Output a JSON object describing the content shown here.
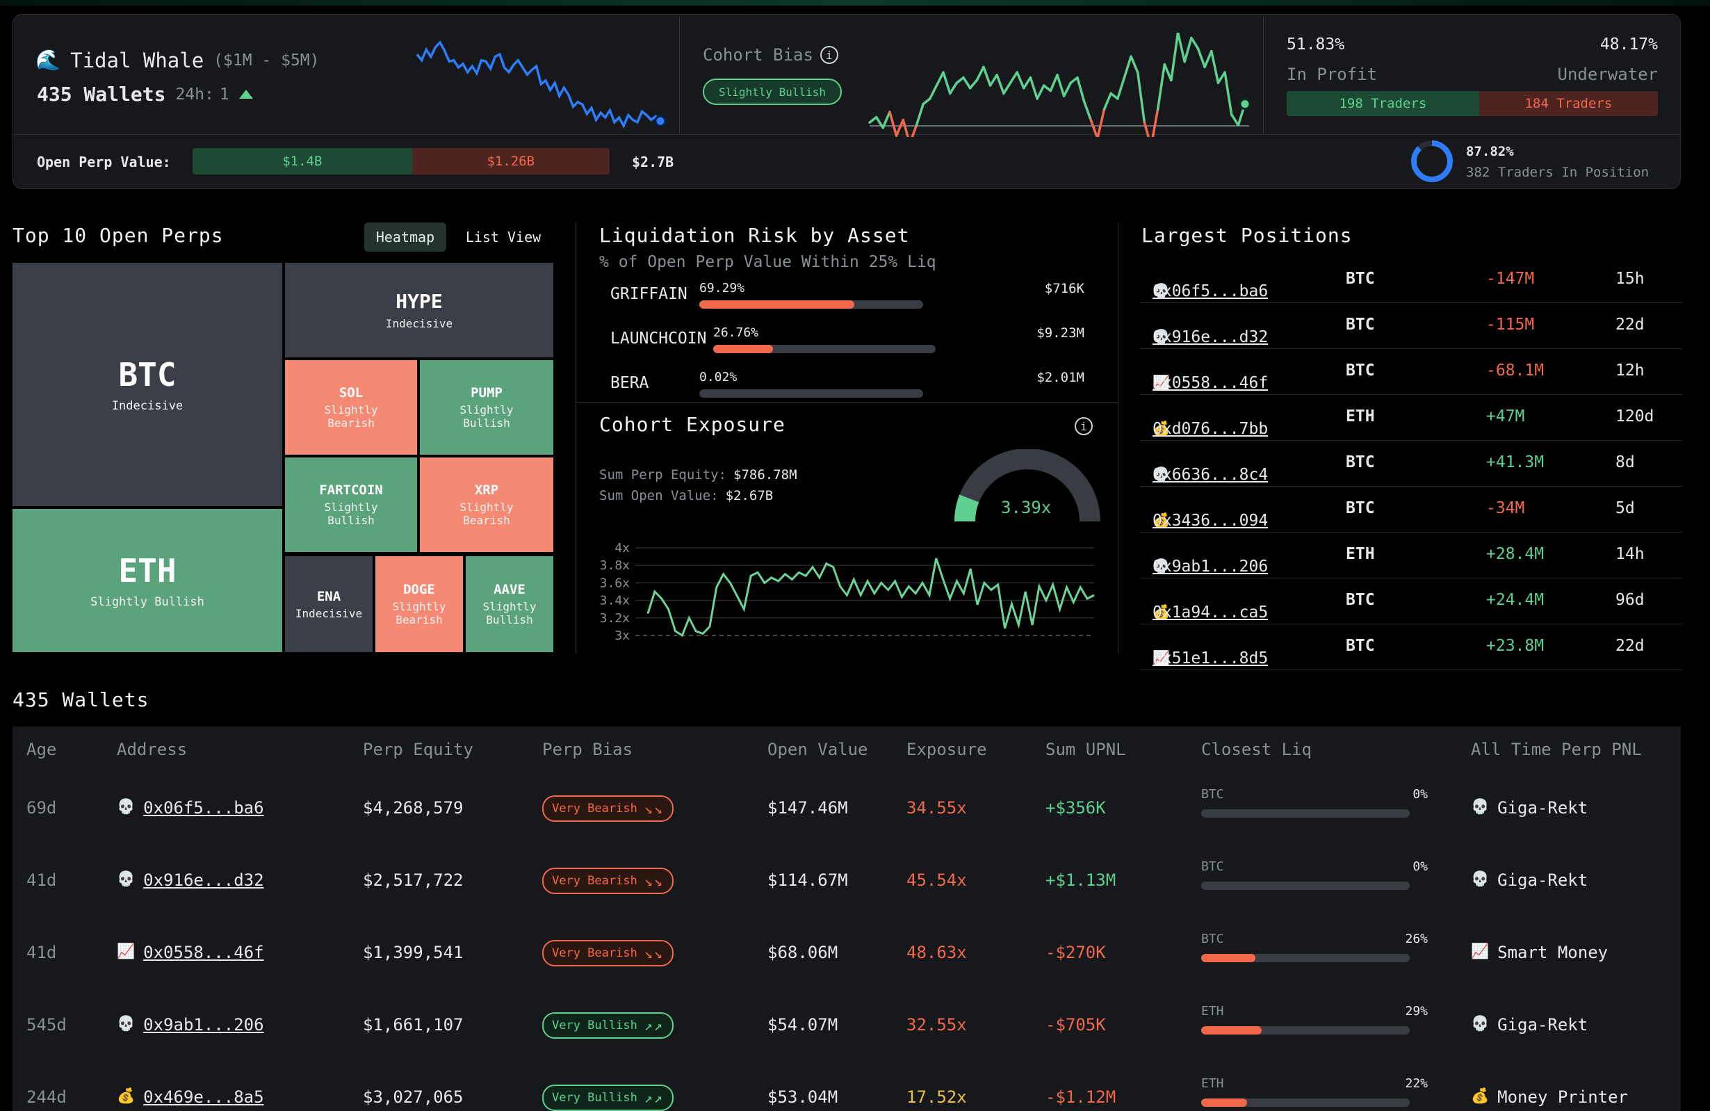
{
  "header": {
    "cohort_icon": "wave-emoji",
    "cohort_name": "Tidal Whale",
    "cohort_range": "($1M - $5M)",
    "wallets": "435 Wallets",
    "change_label": "24h:",
    "change_value": "1",
    "bias_label": "Cohort Bias",
    "bias_value": "Slightly Bullish",
    "profit_pct": "51.83%",
    "profit_label": "In Profit",
    "underwater_pct": "48.17%",
    "underwater_label": "Underwater",
    "profit_traders": "198 Traders",
    "underwater_traders": "184 Traders",
    "profit_share": 51.83,
    "open_perp_label": "Open Perp Value:",
    "open_long": "$1.4B",
    "open_short": "$1.26B",
    "open_total": "$2.7B",
    "long_share": 52.6,
    "in_position_pct": "87.82%",
    "in_position_label": "382 Traders In Position",
    "in_position_value": 87.82,
    "colors": {
      "green": "#5ed08f",
      "red": "#f2684a",
      "blue": "#2e7cf6"
    }
  },
  "sparklines": {
    "whale": [
      40,
      30,
      48,
      36,
      52,
      60,
      46,
      28,
      30,
      18,
      24,
      10,
      20,
      8,
      30,
      28,
      16,
      36,
      40,
      18,
      10,
      22,
      30,
      18,
      6,
      14,
      20,
      -10,
      -4,
      -20,
      -8,
      -30,
      -16,
      -28,
      -48,
      -40,
      -44,
      -60,
      -50,
      -70,
      -58,
      -66,
      -54,
      -74,
      -66,
      -80,
      -62,
      -70,
      -74,
      -56,
      -62,
      -70,
      -64,
      -72
    ],
    "bias": [
      -8,
      -4,
      -12,
      0,
      -18,
      -6,
      -24,
      -10,
      6,
      10,
      20,
      30,
      14,
      22,
      26,
      18,
      24,
      34,
      20,
      28,
      14,
      22,
      30,
      18,
      26,
      10,
      20,
      16,
      28,
      12,
      22,
      26,
      8,
      -6,
      -20,
      2,
      14,
      10,
      26,
      42,
      30,
      -8,
      -26,
      2,
      36,
      24,
      60,
      38,
      56,
      48,
      34,
      46,
      22,
      30,
      -2,
      -10,
      6
    ]
  },
  "top_perps": {
    "title": "Top 10 Open Perps",
    "tabs": [
      "Heatmap",
      "List View"
    ],
    "tiles": [
      {
        "name": "BTC",
        "status": "Indecisive"
      },
      {
        "name": "ETH",
        "status": "Slightly Bullish"
      },
      {
        "name": "HYPE",
        "status": "Indecisive"
      },
      {
        "name": "SOL",
        "status": "Slightly Bearish"
      },
      {
        "name": "PUMP",
        "status": "Slightly Bullish"
      },
      {
        "name": "FARTCOIN",
        "status": "Slightly Bullish"
      },
      {
        "name": "XRP",
        "status": "Slightly Bearish"
      },
      {
        "name": "ENA",
        "status": "Indecisive"
      },
      {
        "name": "DOGE",
        "status": "Slightly Bearish"
      },
      {
        "name": "AAVE",
        "status": "Slightly Bullish"
      }
    ]
  },
  "liquidation": {
    "title": "Liquidation Risk by Asset",
    "subtitle": "% of Open Perp Value Within 25% Liq",
    "rows": [
      {
        "asset": "GRIFFAIN",
        "pct": "69.29%",
        "value": "$716K",
        "fill": 69.29
      },
      {
        "asset": "LAUNCHCOIN",
        "pct": "26.76%",
        "value": "$9.23M",
        "fill": 26.76
      },
      {
        "asset": "BERA",
        "pct": "0.02%",
        "value": "$2.01M",
        "fill": 0.02
      }
    ]
  },
  "exposure": {
    "title": "Cohort Exposure",
    "equity_label": "Sum Perp Equity:",
    "equity_value": "$786.78M",
    "open_label": "Sum Open Value:",
    "open_value": "$2.67B",
    "gauge_value": "3.39x",
    "gauge_fraction": 0.12,
    "chart_data": {
      "type": "line",
      "title": "Cohort Exposure",
      "y_ticks": [
        "4x",
        "3.8x",
        "3.6x",
        "3.4x",
        "3.2x",
        "3x"
      ],
      "ylim": [
        3.0,
        4.0
      ],
      "values": [
        3.25,
        3.5,
        3.42,
        3.3,
        3.05,
        3.0,
        3.2,
        3.05,
        3.02,
        3.1,
        3.55,
        3.7,
        3.6,
        3.45,
        3.3,
        3.68,
        3.72,
        3.6,
        3.66,
        3.62,
        3.7,
        3.64,
        3.72,
        3.68,
        3.78,
        3.66,
        3.82,
        3.78,
        3.56,
        3.46,
        3.64,
        3.46,
        3.62,
        3.48,
        3.6,
        3.52,
        3.62,
        3.44,
        3.56,
        3.48,
        3.6,
        3.46,
        3.88,
        3.64,
        3.42,
        3.62,
        3.48,
        3.76,
        3.35,
        3.6,
        3.52,
        3.58,
        3.08,
        3.36,
        3.12,
        3.5,
        3.12,
        3.56,
        3.4,
        3.58,
        3.3,
        3.55,
        3.38,
        3.55,
        3.42,
        3.46
      ]
    }
  },
  "largest": {
    "title": "Largest Positions",
    "rows": [
      {
        "icon": "skull",
        "addr": "0x06f5...ba6",
        "asset": "BTC",
        "value": "-147M",
        "neg": true,
        "age": "15h"
      },
      {
        "icon": "skull",
        "addr": "0x916e...d32",
        "asset": "BTC",
        "value": "-115M",
        "neg": true,
        "age": "22d"
      },
      {
        "icon": "chart",
        "addr": "0x0558...46f",
        "asset": "BTC",
        "value": "-68.1M",
        "neg": true,
        "age": "12h"
      },
      {
        "icon": "money",
        "addr": "0xd076...7bb",
        "asset": "ETH",
        "value": "+47M",
        "neg": false,
        "age": "120d"
      },
      {
        "icon": "skull",
        "addr": "0x6636...8c4",
        "asset": "BTC",
        "value": "+41.3M",
        "neg": false,
        "age": "8d"
      },
      {
        "icon": "money",
        "addr": "0x3436...094",
        "asset": "BTC",
        "value": "-34M",
        "neg": true,
        "age": "5d"
      },
      {
        "icon": "skull",
        "addr": "0x9ab1...206",
        "asset": "ETH",
        "value": "+28.4M",
        "neg": false,
        "age": "14h"
      },
      {
        "icon": "money",
        "addr": "0x1a94...ca5",
        "asset": "BTC",
        "value": "+24.4M",
        "neg": false,
        "age": "96d"
      },
      {
        "icon": "chart",
        "addr": "0x51e1...8d5",
        "asset": "BTC",
        "value": "+23.8M",
        "neg": false,
        "age": "22d"
      }
    ]
  },
  "wallets": {
    "title": "435 Wallets",
    "columns": [
      "Age",
      "Address",
      "Perp Equity",
      "Perp Bias",
      "Open Value",
      "Exposure",
      "Sum UPNL",
      "Closest Liq",
      "All Time Perp PNL"
    ],
    "rows": [
      {
        "age": "69d",
        "icon": "skull",
        "addr": "0x06f5...ba6",
        "equity": "$4,268,579",
        "bias": "Very Bearish",
        "bear": true,
        "open": "$147.46M",
        "exposure": "34.55x",
        "exp_color": "#f2684a",
        "upnl": "+$356K",
        "upnl_pos": true,
        "liq_asset": "BTC",
        "liq_pct": "0%",
        "liq_fill": 0,
        "pnl_icon": "skull",
        "pnl": "Giga-Rekt"
      },
      {
        "age": "41d",
        "icon": "skull",
        "addr": "0x916e...d32",
        "equity": "$2,517,722",
        "bias": "Very Bearish",
        "bear": true,
        "open": "$114.67M",
        "exposure": "45.54x",
        "exp_color": "#f2684a",
        "upnl": "+$1.13M",
        "upnl_pos": true,
        "liq_asset": "BTC",
        "liq_pct": "0%",
        "liq_fill": 0,
        "pnl_icon": "skull",
        "pnl": "Giga-Rekt"
      },
      {
        "age": "41d",
        "icon": "chart",
        "addr": "0x0558...46f",
        "equity": "$1,399,541",
        "bias": "Very Bearish",
        "bear": true,
        "open": "$68.06M",
        "exposure": "48.63x",
        "exp_color": "#f2684a",
        "upnl": "-$270K",
        "upnl_pos": false,
        "liq_asset": "BTC",
        "liq_pct": "26%",
        "liq_fill": 26,
        "pnl_icon": "chart",
        "pnl": "Smart Money"
      },
      {
        "age": "545d",
        "icon": "skull",
        "addr": "0x9ab1...206",
        "equity": "$1,661,107",
        "bias": "Very Bullish",
        "bear": false,
        "open": "$54.07M",
        "exposure": "32.55x",
        "exp_color": "#f2684a",
        "upnl": "-$705K",
        "upnl_pos": false,
        "liq_asset": "ETH",
        "liq_pct": "29%",
        "liq_fill": 29,
        "pnl_icon": "skull",
        "pnl": "Giga-Rekt"
      },
      {
        "age": "244d",
        "icon": "money",
        "addr": "0x469e...8a5",
        "equity": "$3,027,065",
        "bias": "Very Bullish",
        "bear": false,
        "open": "$53.04M",
        "exposure": "17.52x",
        "exp_color": "#e8c14a",
        "upnl": "-$1.12M",
        "upnl_pos": false,
        "liq_asset": "ETH",
        "liq_pct": "22%",
        "liq_fill": 22,
        "pnl_icon": "money",
        "pnl": "Money Printer"
      }
    ]
  }
}
